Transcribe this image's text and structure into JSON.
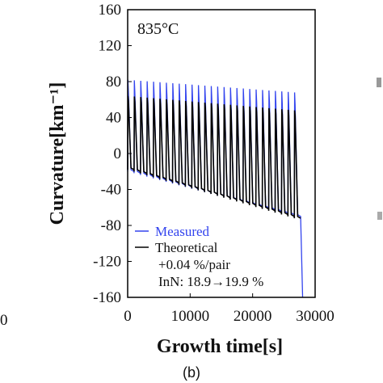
{
  "chart_data": {
    "type": "line",
    "annotation": "835°C",
    "xlabel": "Growth time[s]",
    "ylabel": "Curvature[km⁻¹]",
    "xlim": [
      0,
      30000
    ],
    "ylim": [
      -160,
      160
    ],
    "xticks": [
      "0",
      "10000",
      "20000",
      "30000"
    ],
    "yticks": [
      "160",
      "120",
      "80",
      "40",
      "0",
      "-40",
      "-80",
      "-120",
      "-160"
    ],
    "grid": false,
    "legend_position": "bottom-left",
    "series": [
      {
        "name": "Measured",
        "color": "#3344ee",
        "peaks_start": 82,
        "peaks_end": 68,
        "troughs_start": -20,
        "troughs_end": -70,
        "end_drop": -160
      },
      {
        "name": "Theoretical",
        "color": "#000000",
        "peaks_start": 64,
        "peaks_end": 48,
        "troughs_start": -18,
        "troughs_end": -72
      }
    ],
    "cycles": 27,
    "t_start": 0,
    "t_end": 27700,
    "legend_notes": [
      "+0.04 %/pair",
      "InN: 18.9→19.9 %"
    ],
    "left_panel_tick": "0",
    "panel_label": "(b)"
  }
}
